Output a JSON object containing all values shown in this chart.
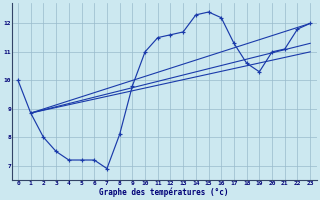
{
  "title": "Graphe des températures (°c)",
  "bg_color": "#cce8f0",
  "grid_color": "#99bbcc",
  "line_color": "#1a3aaa",
  "xlim": [
    -0.5,
    23.5
  ],
  "ylim": [
    6.5,
    12.7
  ],
  "xticks": [
    0,
    1,
    2,
    3,
    4,
    5,
    6,
    7,
    8,
    9,
    10,
    11,
    12,
    13,
    14,
    15,
    16,
    17,
    18,
    19,
    20,
    21,
    22,
    23
  ],
  "yticks": [
    7,
    8,
    9,
    10,
    11,
    12
  ],
  "curve1_x": [
    0,
    1,
    2,
    3,
    4,
    5,
    6,
    7,
    8,
    9,
    10,
    11,
    12,
    13,
    14,
    15,
    16,
    17,
    18,
    19,
    20,
    21,
    22,
    23
  ],
  "curve1_y": [
    10.0,
    8.85,
    8.0,
    7.5,
    7.2,
    7.2,
    7.2,
    6.9,
    8.1,
    9.8,
    11.0,
    11.5,
    11.6,
    11.7,
    12.3,
    12.4,
    12.2,
    11.3,
    10.6,
    10.3,
    11.0,
    11.1,
    11.8,
    12.0
  ],
  "line2_x": [
    1,
    23
  ],
  "line2_y": [
    8.85,
    12.0
  ],
  "line3_x": [
    1,
    23
  ],
  "line3_y": [
    8.85,
    11.3
  ],
  "line4_x": [
    1,
    23
  ],
  "line4_y": [
    8.85,
    11.0
  ]
}
